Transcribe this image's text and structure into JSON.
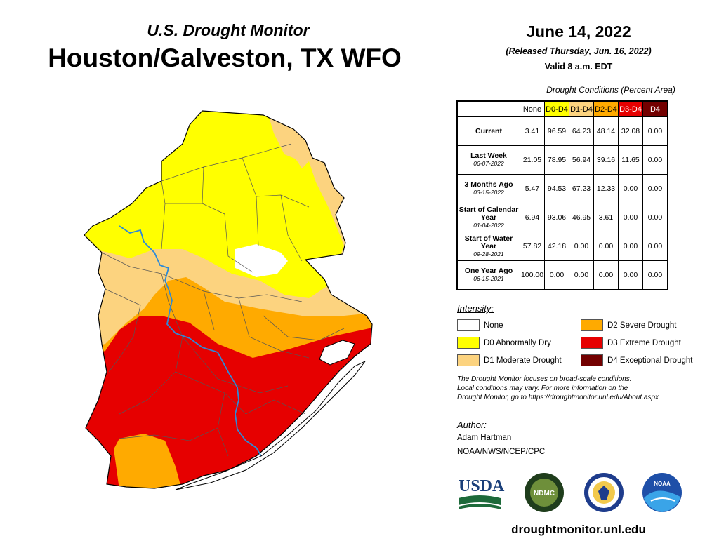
{
  "header": {
    "subtitle": "U.S. Drought Monitor",
    "title": "Houston/Galveston, TX WFO",
    "date": "June 14, 2022",
    "released": "(Released Thursday, Jun. 16, 2022)",
    "valid": "Valid 8 a.m. EDT"
  },
  "table": {
    "caption": "Drought Conditions (Percent Area)",
    "columns": [
      "None",
      "D0-D4",
      "D1-D4",
      "D2-D4",
      "D3-D4",
      "D4"
    ],
    "rows": [
      {
        "label": "Current",
        "date": "",
        "values": [
          "3.41",
          "96.59",
          "64.23",
          "48.14",
          "32.08",
          "0.00"
        ]
      },
      {
        "label": "Last Week",
        "date": "06-07-2022",
        "values": [
          "21.05",
          "78.95",
          "56.94",
          "39.16",
          "11.65",
          "0.00"
        ]
      },
      {
        "label": "3 Months Ago",
        "date": "03-15-2022",
        "values": [
          "5.47",
          "94.53",
          "67.23",
          "12.33",
          "0.00",
          "0.00"
        ]
      },
      {
        "label": "Start of Calendar Year",
        "date": "01-04-2022",
        "values": [
          "6.94",
          "93.06",
          "46.95",
          "3.61",
          "0.00",
          "0.00"
        ]
      },
      {
        "label": "Start of Water Year",
        "date": "09-28-2021",
        "values": [
          "57.82",
          "42.18",
          "0.00",
          "0.00",
          "0.00",
          "0.00"
        ]
      },
      {
        "label": "One Year Ago",
        "date": "06-15-2021",
        "values": [
          "100.00",
          "0.00",
          "0.00",
          "0.00",
          "0.00",
          "0.00"
        ]
      }
    ]
  },
  "legend": {
    "title": "Intensity:",
    "items": [
      {
        "label": "None",
        "color": "#ffffff"
      },
      {
        "label": "D0 Abnormally Dry",
        "color": "#ffff00"
      },
      {
        "label": "D1 Moderate Drought",
        "color": "#fcd37f"
      },
      {
        "label": "D2 Severe Drought",
        "color": "#ffaa00"
      },
      {
        "label": "D3 Extreme Drought",
        "color": "#e60000"
      },
      {
        "label": "D4 Exceptional Drought",
        "color": "#730000"
      }
    ]
  },
  "note": {
    "line1": "The Drought Monitor focuses on broad-scale conditions.",
    "line2": "Local conditions may vary. For more information on the",
    "line3": "Drought Monitor, go to https://droughtmonitor.unl.edu/About.aspx"
  },
  "author": {
    "title": "Author:",
    "name": "Adam Hartman",
    "org": "NOAA/NWS/NCEP/CPC"
  },
  "logos": {
    "usda": "USDA",
    "ndmc": "NDMC",
    "noaa": "NOAA"
  },
  "website": "droughtmonitor.unl.edu"
}
